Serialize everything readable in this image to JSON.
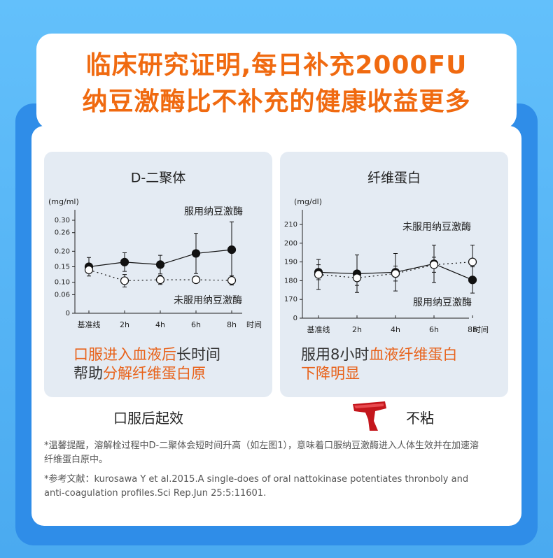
{
  "header": {
    "title_lines": [
      "临床研究证明,每日补充2000FU",
      "纳豆激酶比不补充的健康收益更多"
    ]
  },
  "chart_data": [
    {
      "type": "line",
      "title": "D-二聚体",
      "y_unit": "(mg/ml)",
      "xlabel": "时间",
      "categories": [
        "基准线",
        "2h",
        "4h",
        "6h",
        "8h"
      ],
      "ylim": [
        0,
        0.3
      ],
      "yticks": [
        0,
        0.06,
        {
          "value": 0.1,
          "label": "0.10"
        },
        0.15,
        {
          "value": 0.2,
          "label": "0.20"
        },
        0.26,
        {
          "value": 0.3,
          "label": "0.30"
        }
      ],
      "series": [
        {
          "name": "服用纳豆激酶",
          "label_color": "#e8621a",
          "color": "#111111",
          "marker": "filled",
          "line_style": "solid",
          "values": [
            0.15,
            0.165,
            0.157,
            0.193,
            0.205
          ],
          "errors": [
            0.03,
            0.03,
            0.03,
            0.065,
            0.09
          ]
        },
        {
          "name": "未服用纳豆激酶",
          "label_color": "#222222",
          "color": "#111111",
          "marker": "open",
          "line_style": "dotted",
          "values": [
            0.14,
            0.105,
            0.108,
            0.108,
            0.106
          ],
          "errors": [
            0.01,
            0.02,
            0.015,
            0.01,
            0.015
          ]
        }
      ]
    },
    {
      "type": "line",
      "title": "纤维蛋白",
      "y_unit": "(mg/dl)",
      "xlabel": "时间",
      "categories": [
        "基准线",
        "2h",
        "4h",
        "6h",
        "8h"
      ],
      "ylim": [
        160,
        210
      ],
      "axis_break": true,
      "yticks": [
        0,
        170,
        180,
        190,
        200,
        210
      ],
      "series": [
        {
          "name": "服用纳豆激酶",
          "label_color": "#e8621a",
          "color": "#111111",
          "marker": "filled",
          "line_style": "solid",
          "values": [
            184.5,
            183.7,
            184.5,
            189,
            180.4
          ],
          "errors": [
            4,
            10,
            10,
            10,
            7
          ]
        },
        {
          "name": "未服用纳豆激酶",
          "label_color": "#222222",
          "color": "#111111",
          "marker": "open",
          "line_style": "dotted",
          "values": [
            183.3,
            181.5,
            183.8,
            188.5,
            190
          ],
          "errors": [
            8,
            4,
            4,
            4,
            9
          ]
        }
      ]
    }
  ],
  "captions": [
    [
      [
        {
          "text": "口服进入血液后",
          "color": "#e8621a"
        },
        {
          "text": "长时间",
          "color": "#333333"
        }
      ],
      [
        {
          "text": "帮助",
          "color": "#333333"
        },
        {
          "text": "分解纤维蛋白原",
          "color": "#e8621a"
        }
      ]
    ],
    [
      [
        {
          "text": "服用8小时",
          "color": "#333333"
        },
        {
          "text": "血液纤维蛋白",
          "color": "#e8621a"
        }
      ],
      [
        {
          "text": "下降明显",
          "color": "#e8621a"
        }
      ]
    ]
  ],
  "features": [
    "口服后起效",
    "不粘"
  ],
  "notes": [
    "*温馨提醒，溶解栓过程中D-二聚体会短时间升高（如左图1），意味着口服纳豆激酶进入人体生效并在加速溶纤维蛋白原中。",
    "*参考文献：kurosawa Y et al.2015.A single-does of oral nattokinase potentiates thronboly and anti-coagulation profiles.Sci Rep.Jun 25:5:11601."
  ]
}
